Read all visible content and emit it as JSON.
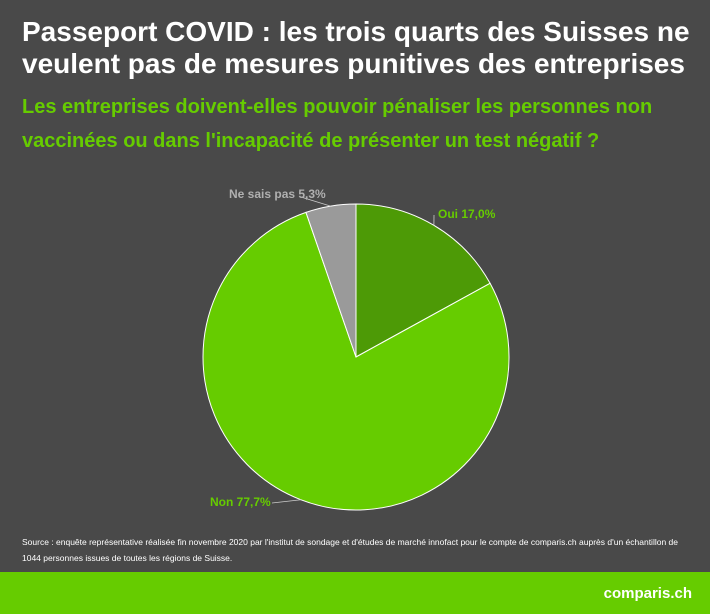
{
  "chart_data": {
    "type": "pie",
    "title": "Passeport COVID : les trois quarts des Suisses ne veulent pas de mesures punitives des entreprises",
    "subtitle": "Les entreprises doivent-elles pouvoir pénaliser les personnes non vaccinées ou dans l'incapacité de présenter un test négatif ?",
    "categories": [
      "Oui 17,0%",
      "Non 77,7%",
      "Ne sais pas 5,3%"
    ],
    "values": [
      17.0,
      77.7,
      5.3
    ],
    "colors": [
      "#4d9a06",
      "#66cc00",
      "#9a9a9a"
    ],
    "label_colors": [
      "#66cc00",
      "#66cc00",
      "#b0b0b0"
    ],
    "source": "Source : enquête représentative réalisée fin novembre 2020 par l'institut de sondage et d'études de marché innofact pour le compte de comparis.ch auprès d'un échantillon de 1044 personnes issues de toutes les régions de Suisse.",
    "logo": "comparis.ch"
  }
}
